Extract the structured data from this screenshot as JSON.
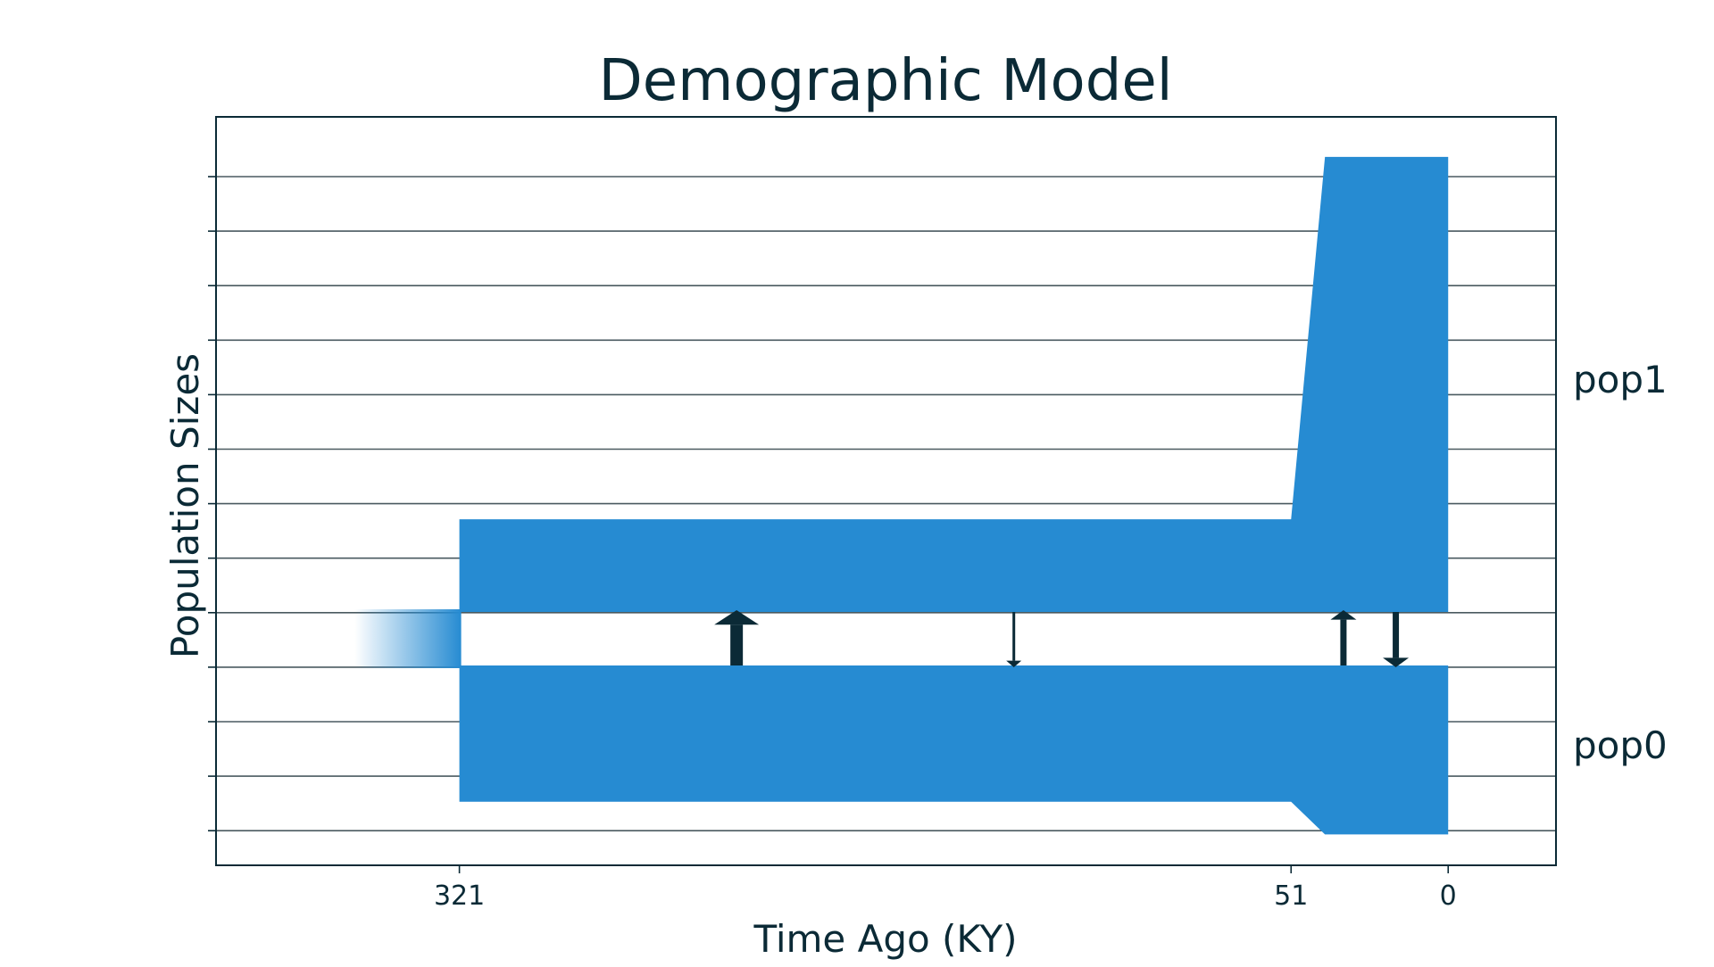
{
  "chart_data": {
    "type": "area",
    "title": "Demographic Model",
    "xlabel": "Time Ago (KY)",
    "ylabel": "Population Sizes",
    "x_reversed": true,
    "xlim": [
      400,
      -35
    ],
    "x_ticks": [
      321,
      51,
      0
    ],
    "x_tick_labels": [
      "321",
      "51",
      "0"
    ],
    "y_ticks_labeled": false,
    "grid": "horizontal",
    "population_labels": [
      "pop1",
      "pop0"
    ],
    "ancestral": {
      "start": 321,
      "end": 355,
      "fade": true
    },
    "populations": [
      {
        "name": "pop1",
        "side": "upper",
        "size_history": [
          [
            321,
            1.7
          ],
          [
            51,
            1.7
          ],
          [
            40,
            8.35
          ],
          [
            0,
            8.35
          ]
        ]
      },
      {
        "name": "pop0",
        "side": "lower",
        "size_history": [
          [
            321,
            2.5
          ],
          [
            51,
            2.5
          ],
          [
            40,
            3.1
          ],
          [
            0,
            3.1
          ]
        ]
      }
    ],
    "migrations": [
      {
        "time": 231,
        "direction": "pop0_to_pop1",
        "rate": "high"
      },
      {
        "time": 141,
        "direction": "pop1_to_pop0",
        "rate": "low"
      },
      {
        "time": 34,
        "direction": "pop0_to_pop1",
        "rate": "medium"
      },
      {
        "time": 17,
        "direction": "pop1_to_pop0",
        "rate": "medium"
      }
    ],
    "colors": {
      "population": "#268bd2",
      "text": "#0b2a36",
      "axis": "#0b2a36",
      "grid": "#4a5a60"
    }
  }
}
